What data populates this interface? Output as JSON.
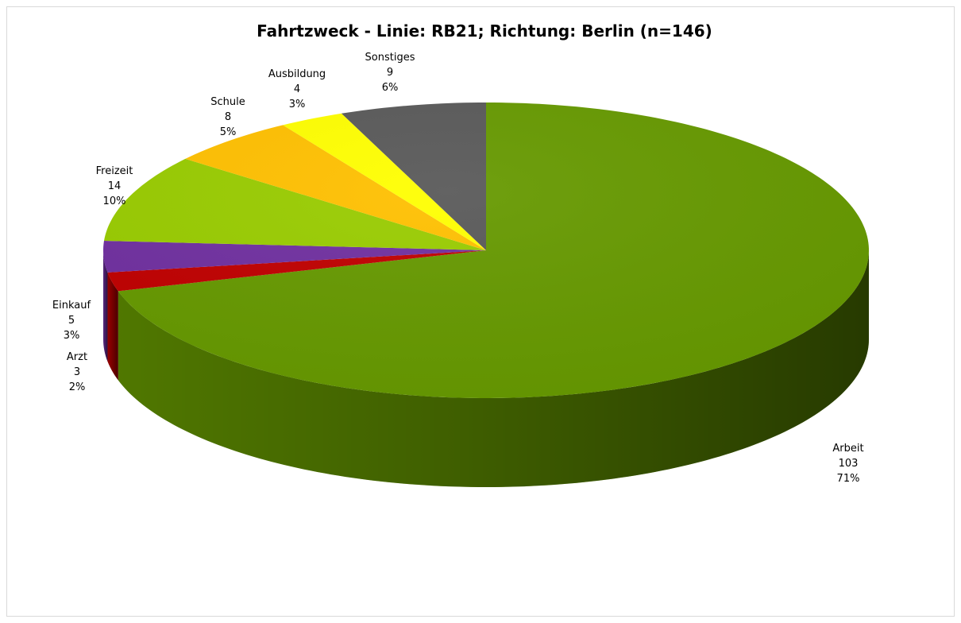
{
  "chart_data": {
    "type": "pie",
    "title": "Fahrtzweck - Linie: RB21; Richtung: Berlin (n=146)",
    "three_d": true,
    "legend": "none",
    "slices": [
      {
        "label": "Arbeit",
        "value": 103,
        "percent": "71%",
        "color": "#669900"
      },
      {
        "label": "Arzt",
        "value": 3,
        "percent": "2%",
        "color": "#c00000"
      },
      {
        "label": "Einkauf",
        "value": 5,
        "percent": "3%",
        "color": "#7030a0"
      },
      {
        "label": "Freizeit",
        "value": 14,
        "percent": "10%",
        "color": "#99cc00"
      },
      {
        "label": "Schule",
        "value": 8,
        "percent": "5%",
        "color": "#ffc000"
      },
      {
        "label": "Ausbildung",
        "value": 4,
        "percent": "3%",
        "color": "#ffff00"
      },
      {
        "label": "Sonstiges",
        "value": 9,
        "percent": "6%",
        "color": "#595959"
      }
    ]
  }
}
